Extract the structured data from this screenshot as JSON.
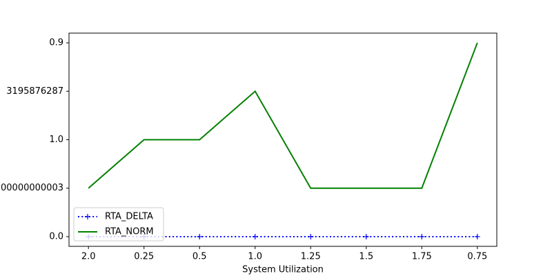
{
  "chart_data": {
    "type": "line",
    "xlabel": "System Utilization",
    "categories": [
      "2.0",
      "0.25",
      "0.5",
      "1.0",
      "1.25",
      "1.5",
      "1.75",
      "0.75"
    ],
    "series": [
      {
        "name": "RTA_DELTA",
        "color": "#0000ff",
        "style": "dotted",
        "marker": "+",
        "values": [
          0,
          0,
          0,
          0,
          0,
          0,
          0,
          0
        ]
      },
      {
        "name": "RTA_NORM",
        "color": "#008000",
        "style": "solid",
        "values": [
          1,
          2,
          2,
          3,
          1,
          1,
          1,
          4
        ]
      }
    ],
    "ylim": [
      -0.2,
      4.2
    ],
    "yticks": [
      {
        "value": 0,
        "label": "0.0"
      },
      {
        "value": 1,
        "label": "00000000003"
      },
      {
        "value": 2,
        "label": "1.0"
      },
      {
        "value": 3,
        "label": "3195876287"
      },
      {
        "value": 4,
        "label": "0.9"
      }
    ],
    "legend": "lower left"
  }
}
